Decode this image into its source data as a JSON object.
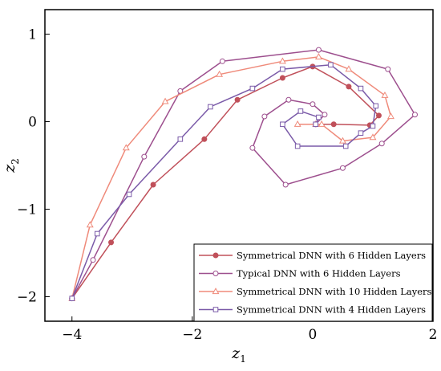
{
  "chart_data": {
    "type": "line",
    "title": "",
    "xlabel": "z",
    "xlabel_sub": "1",
    "ylabel": "z",
    "ylabel_sub": "2",
    "xlim": [
      -4.45,
      2.0
    ],
    "ylim": [
      -2.28,
      1.28
    ],
    "xticks": [
      -4,
      -2,
      0,
      2
    ],
    "yticks": [
      -2,
      -1,
      0,
      1
    ],
    "xtick_labels": [
      "−4",
      "−2",
      "0",
      "2"
    ],
    "ytick_labels": [
      "−2",
      "−1",
      "0",
      "1"
    ],
    "grid": false,
    "legend_position": "bottom-right",
    "series": [
      {
        "name": "Symmetrical DNN with 6 Hidden Layers",
        "color": "#c0505a",
        "marker": "filled-circle",
        "points": [
          [
            -4.0,
            -2.02
          ],
          [
            -3.35,
            -1.38
          ],
          [
            -2.65,
            -0.72
          ],
          [
            -1.8,
            -0.2
          ],
          [
            -1.25,
            0.25
          ],
          [
            -0.5,
            0.5
          ],
          [
            0.0,
            0.63
          ],
          [
            0.6,
            0.4
          ],
          [
            1.1,
            0.07
          ],
          [
            0.95,
            -0.04
          ],
          [
            0.35,
            -0.03
          ],
          [
            0.05,
            -0.03
          ]
        ]
      },
      {
        "name": "Typical DNN with 6 Hidden Layers",
        "color": "#9d4f8e",
        "marker": "open-circle",
        "points": [
          [
            -4.0,
            -2.02
          ],
          [
            -3.65,
            -1.58
          ],
          [
            -2.8,
            -0.4
          ],
          [
            -2.2,
            0.35
          ],
          [
            -1.5,
            0.69
          ],
          [
            0.1,
            0.82
          ],
          [
            1.25,
            0.6
          ],
          [
            1.7,
            0.08
          ],
          [
            1.15,
            -0.25
          ],
          [
            0.5,
            -0.53
          ],
          [
            -0.45,
            -0.72
          ],
          [
            -1.0,
            -0.3
          ],
          [
            -0.8,
            0.06
          ],
          [
            -0.4,
            0.25
          ],
          [
            0.0,
            0.2
          ],
          [
            0.2,
            0.08
          ],
          [
            0.05,
            -0.03
          ]
        ]
      },
      {
        "name": "Symmetrical DNN with 10 Hidden Layers",
        "color": "#ef8a7a",
        "marker": "open-triangle",
        "points": [
          [
            -4.0,
            -2.02
          ],
          [
            -3.7,
            -1.18
          ],
          [
            -3.1,
            -0.3
          ],
          [
            -2.45,
            0.23
          ],
          [
            -1.55,
            0.54
          ],
          [
            -0.5,
            0.69
          ],
          [
            0.1,
            0.74
          ],
          [
            0.6,
            0.6
          ],
          [
            1.2,
            0.3
          ],
          [
            1.3,
            0.06
          ],
          [
            1.0,
            -0.18
          ],
          [
            0.5,
            -0.22
          ],
          [
            0.15,
            -0.03
          ],
          [
            -0.25,
            -0.03
          ],
          [
            0.05,
            -0.03
          ]
        ]
      },
      {
        "name": "Symmetrical DNN with 4 Hidden Layers",
        "color": "#7a5aa8",
        "marker": "open-square",
        "points": [
          [
            -4.0,
            -2.02
          ],
          [
            -3.58,
            -1.28
          ],
          [
            -3.05,
            -0.83
          ],
          [
            -2.2,
            -0.2
          ],
          [
            -1.7,
            0.17
          ],
          [
            -1.0,
            0.38
          ],
          [
            -0.5,
            0.6
          ],
          [
            0.3,
            0.65
          ],
          [
            0.8,
            0.38
          ],
          [
            1.05,
            0.18
          ],
          [
            1.0,
            -0.05
          ],
          [
            0.8,
            -0.13
          ],
          [
            0.55,
            -0.28
          ],
          [
            -0.25,
            -0.28
          ],
          [
            -0.5,
            -0.03
          ],
          [
            -0.2,
            0.12
          ],
          [
            0.1,
            0.05
          ],
          [
            0.05,
            -0.03
          ]
        ]
      }
    ]
  }
}
